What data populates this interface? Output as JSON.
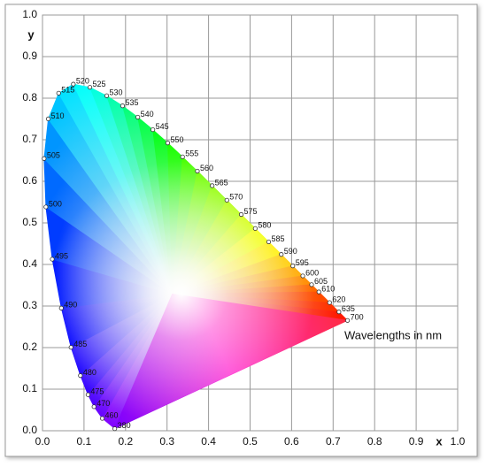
{
  "chart_data": {
    "type": "scatter",
    "x_label": "x",
    "y_label": "y",
    "annotation": "Wavelengths in nm",
    "labels": [
      "380",
      "460",
      "470",
      "475",
      "480",
      "485",
      "490",
      "495",
      "500",
      "505",
      "510",
      "515",
      "520",
      "525",
      "530",
      "535",
      "540",
      "545",
      "550",
      "555",
      "560",
      "565",
      "570",
      "575",
      "580",
      "585",
      "590",
      "595",
      "600",
      "605",
      "610",
      "620",
      "635",
      "700"
    ],
    "x": [
      0.1741,
      0.144,
      0.1241,
      0.1096,
      0.0913,
      0.0687,
      0.0454,
      0.0235,
      0.0082,
      0.0039,
      0.0139,
      0.0389,
      0.0743,
      0.1142,
      0.1547,
      0.1929,
      0.2296,
      0.2658,
      0.3016,
      0.3373,
      0.3731,
      0.4087,
      0.4441,
      0.4788,
      0.5125,
      0.5448,
      0.5752,
      0.6029,
      0.627,
      0.6482,
      0.6658,
      0.6915,
      0.714,
      0.7347
    ],
    "y": [
      0.005,
      0.0297,
      0.0578,
      0.0868,
      0.1327,
      0.2007,
      0.295,
      0.4127,
      0.5384,
      0.6548,
      0.7502,
      0.812,
      0.8338,
      0.8262,
      0.8059,
      0.7816,
      0.7543,
      0.7243,
      0.6923,
      0.6589,
      0.6245,
      0.5896,
      0.5547,
      0.5202,
      0.4866,
      0.4544,
      0.4242,
      0.3965,
      0.3725,
      0.3514,
      0.334,
      0.3083,
      0.2859,
      0.2653
    ],
    "xlim": [
      0,
      1
    ],
    "ylim": [
      0,
      1
    ],
    "xticks": [
      {
        "value": 0,
        "label": "0.0"
      },
      0.1,
      0.2,
      0.3,
      0.4,
      0.5,
      0.6,
      0.7,
      0.8,
      0.9,
      {
        "value": 1,
        "label": "1.0"
      }
    ],
    "yticks": [
      {
        "value": 0,
        "label": "0.0"
      },
      0.1,
      0.2,
      0.3,
      0.4,
      0.5,
      0.6,
      0.7,
      0.8,
      0.9,
      {
        "value": 1,
        "label": "1.0"
      }
    ],
    "grid": true
  }
}
